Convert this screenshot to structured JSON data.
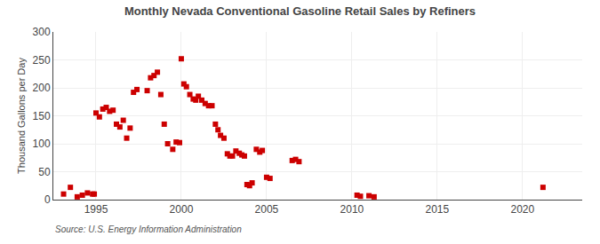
{
  "chart_data": {
    "type": "scatter",
    "title": "Monthly Nevada Conventional Gasoline Retail Sales by Refiners",
    "ylabel": "Thousand Gallons per Day",
    "annotations": [
      "Source: U.S. Energy Information Administration"
    ],
    "color": "#cc0000",
    "marker": "square",
    "grid": true,
    "xlim": [
      1992.5,
      2023.5
    ],
    "ylim": [
      0,
      300
    ],
    "xticks": [
      1995,
      2000,
      2005,
      2010,
      2015,
      2020
    ],
    "yticks": [
      0,
      50,
      100,
      150,
      200,
      250,
      300
    ],
    "x": [
      1993.1,
      1993.5,
      1993.9,
      1994.2,
      1994.5,
      1994.8,
      1994.9,
      1995.0,
      1995.2,
      1995.4,
      1995.6,
      1995.8,
      1996.0,
      1996.2,
      1996.4,
      1996.6,
      1996.8,
      1997.0,
      1997.2,
      1997.4,
      1998.0,
      1998.2,
      1998.4,
      1998.6,
      1998.8,
      1999.0,
      1999.2,
      1999.5,
      1999.7,
      1999.9,
      2000.0,
      2000.15,
      2000.3,
      2000.5,
      2000.7,
      2000.85,
      2001.0,
      2001.2,
      2001.4,
      2001.6,
      2001.8,
      2002.0,
      2002.15,
      2002.3,
      2002.5,
      2002.7,
      2002.85,
      2003.0,
      2003.2,
      2003.4,
      2003.55,
      2003.7,
      2003.85,
      2004.0,
      2004.15,
      2004.4,
      2004.6,
      2004.75,
      2005.0,
      2005.2,
      2006.5,
      2006.7,
      2006.9,
      2010.3,
      2010.5,
      2011.0,
      2011.3,
      2021.2
    ],
    "values": [
      10,
      22,
      5,
      8,
      12,
      10,
      10,
      155,
      148,
      162,
      165,
      158,
      160,
      135,
      130,
      142,
      110,
      128,
      192,
      197,
      195,
      218,
      222,
      228,
      188,
      135,
      100,
      90,
      103,
      102,
      252,
      207,
      202,
      188,
      180,
      178,
      185,
      178,
      172,
      168,
      168,
      135,
      125,
      115,
      110,
      82,
      78,
      78,
      87,
      83,
      80,
      78,
      27,
      25,
      30,
      90,
      85,
      88,
      40,
      38,
      70,
      72,
      68,
      8,
      6,
      7,
      5,
      22
    ]
  }
}
